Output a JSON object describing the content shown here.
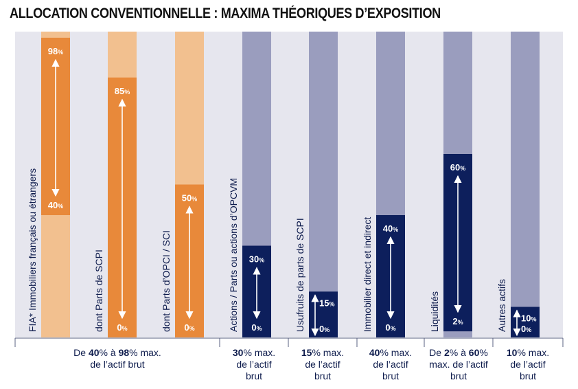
{
  "title": "ALLOCATION CONVENTIONNELLE : MAXIMA THÉORIQUES D’EXPOSITION",
  "colors": {
    "panel_bg": "#e6e6ee",
    "orange": "#e8893a",
    "orange_light": "#f2c08f",
    "navy": "#0d1f5c",
    "grey_blue": "#9a9dbe",
    "arrow": "#ffffff",
    "text": "#0d1b4c"
  },
  "chart_data": {
    "type": "bar",
    "ylim": [
      0,
      100
    ],
    "series": [
      {
        "category": "FIA* Immobiliers français ou étrangers",
        "min": 40,
        "max": 98,
        "min_label": "40",
        "max_label": "98",
        "group": "immo"
      },
      {
        "category": "dont Parts de SCPI",
        "min": 0,
        "max": 85,
        "min_label": "0",
        "max_label": "85",
        "group": "immo"
      },
      {
        "category": "dont Parts d’OPCI / SCI",
        "min": 0,
        "max": 50,
        "min_label": "0",
        "max_label": "50",
        "group": "immo"
      },
      {
        "category": "Actions / Parts ou actions d’OPCVM",
        "min": 0,
        "max": 30,
        "min_label": "0",
        "max_label": "30",
        "group": "other"
      },
      {
        "category": "Usufruits de parts de SCPI",
        "min": 0,
        "max": 15,
        "min_label": "0",
        "max_label": "15",
        "group": "other"
      },
      {
        "category": "Immobilier direct et indirect",
        "min": 0,
        "max": 40,
        "min_label": "0",
        "max_label": "40",
        "group": "other"
      },
      {
        "category": "Liquidités",
        "min": 2,
        "max": 60,
        "min_label": "2",
        "max_label": "60",
        "group": "other"
      },
      {
        "category": "Autres actifs",
        "min": 0,
        "max": 10,
        "min_label": "0",
        "max_label": "10",
        "group": "other"
      }
    ],
    "percent_sign": "%"
  },
  "captions": [
    {
      "parts": [
        [
          "De ",
          false
        ],
        [
          "40",
          true
        ],
        [
          "% à ",
          false
        ],
        [
          "98",
          true
        ],
        [
          "% max.",
          false
        ],
        [
          "\n",
          false
        ],
        [
          "de l’actif brut",
          false
        ]
      ]
    },
    {
      "parts": [
        [
          "30",
          true
        ],
        [
          "% max.",
          false
        ],
        [
          "\n",
          false
        ],
        [
          "de l’actif",
          false
        ],
        [
          "\n",
          false
        ],
        [
          "brut",
          false
        ]
      ]
    },
    {
      "parts": [
        [
          "15",
          true
        ],
        [
          "% max.",
          false
        ],
        [
          "\n",
          false
        ],
        [
          "de l’actif",
          false
        ],
        [
          "\n",
          false
        ],
        [
          "brut",
          false
        ]
      ]
    },
    {
      "parts": [
        [
          "40",
          true
        ],
        [
          "% max.",
          false
        ],
        [
          "\n",
          false
        ],
        [
          "de l’actif",
          false
        ],
        [
          "\n",
          false
        ],
        [
          "brut",
          false
        ]
      ]
    },
    {
      "parts": [
        [
          "De ",
          false
        ],
        [
          "2",
          true
        ],
        [
          "% à ",
          false
        ],
        [
          "60",
          true
        ],
        [
          "%",
          false
        ],
        [
          "\n",
          false
        ],
        [
          "max. de l’actif",
          false
        ],
        [
          "\n",
          false
        ],
        [
          "brut",
          false
        ]
      ]
    },
    {
      "parts": [
        [
          "10",
          true
        ],
        [
          "% max.",
          false
        ],
        [
          "\n",
          false
        ],
        [
          "de l’actif",
          false
        ],
        [
          "\n",
          false
        ],
        [
          "brut",
          false
        ]
      ]
    }
  ]
}
